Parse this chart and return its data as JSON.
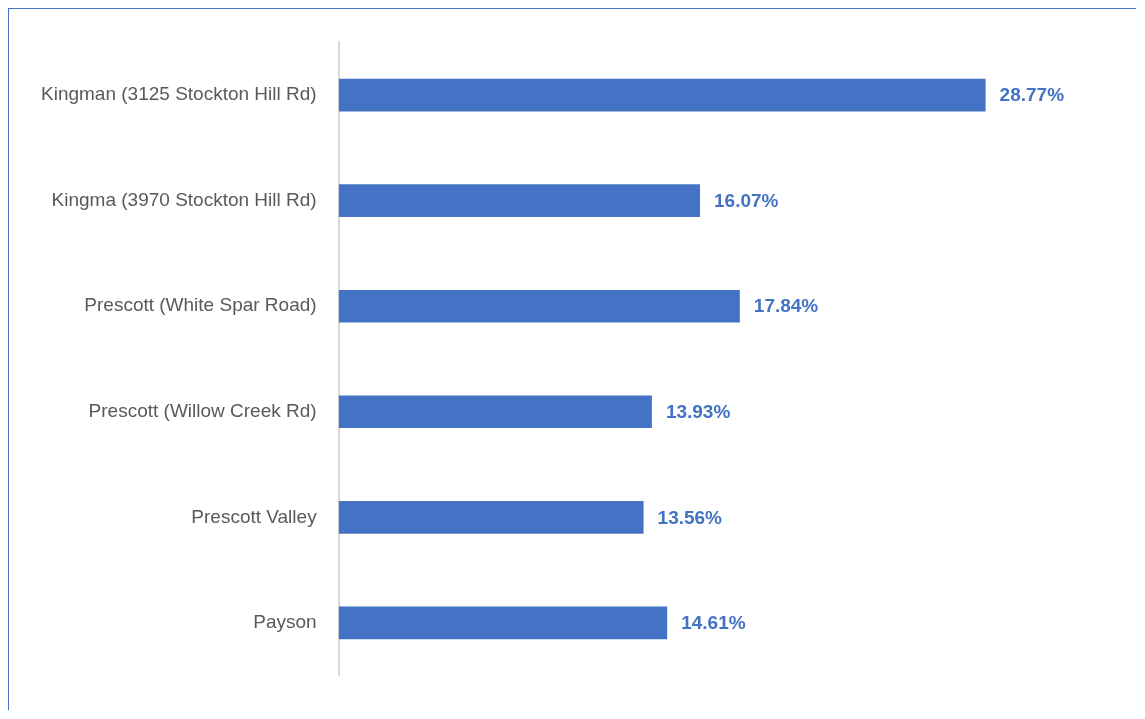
{
  "chart_data": {
    "type": "bar",
    "orientation": "horizontal",
    "categories": [
      "Kingman (3125 Stockton Hill Rd)",
      "Kingma (3970 Stockton Hill Rd)",
      "Prescott (White Spar Road)",
      "Prescott (Willow Creek Rd)",
      "Prescott Valley",
      "Payson"
    ],
    "values": [
      28.77,
      16.07,
      17.84,
      13.93,
      13.56,
      14.61
    ],
    "value_labels": [
      "28.77%",
      "16.07%",
      "17.84%",
      "13.93%",
      "13.56%",
      "14.61%"
    ],
    "color": "#4472c4",
    "grid": false,
    "legend": false
  }
}
